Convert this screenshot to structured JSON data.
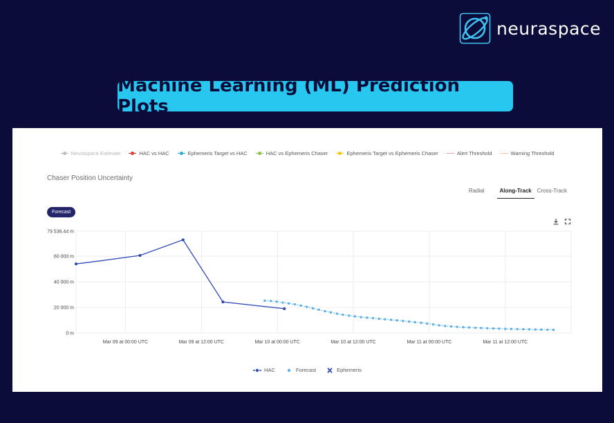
{
  "brand": {
    "name": "neuraspace",
    "logo_icon": "orbit-logo-icon"
  },
  "headline": "Machine Learning (ML) Prediction Plots",
  "top_legend": [
    {
      "label": "Neuraspace Estimate",
      "color": "#bdbdbd",
      "style": "dot-line",
      "muted": true
    },
    {
      "label": "HAC vs HAC",
      "color": "#e53935",
      "style": "dot-line"
    },
    {
      "label": "Ephemeris Target vs HAC",
      "color": "#29a8d8",
      "style": "dot-line"
    },
    {
      "label": "HAC vs Ephemeris Chaser",
      "color": "#8bc34a",
      "style": "dot-line"
    },
    {
      "label": "Ephemeris Target vs Ephemeris Chaser",
      "color": "#f5c518",
      "style": "dot-line"
    },
    {
      "label": "Alert Threshold",
      "color": "#ef8f8f",
      "style": "dashed"
    },
    {
      "label": "Warning Threshold",
      "color": "#f7b98c",
      "style": "dashed"
    }
  ],
  "panel": {
    "title": "Chaser Position Uncertainty",
    "tabs": [
      {
        "label": "Radial",
        "active": false
      },
      {
        "label": "Along-Track",
        "active": true
      },
      {
        "label": "Cross-Track",
        "active": false
      }
    ],
    "pill": "Forecast",
    "icons": {
      "download": "download-icon",
      "expand": "expand-icon"
    }
  },
  "bottom_legend": [
    {
      "label": "HAC",
      "color": "#2f49b5",
      "marker": "dot-line"
    },
    {
      "label": "Forecast",
      "color": "#5cb0ea",
      "marker": "dot"
    },
    {
      "label": "Ephemeris",
      "color": "#2f49b5",
      "marker": "x"
    }
  ],
  "chart_data": {
    "type": "line",
    "title": "Chaser Position Uncertainty",
    "xlabel": "",
    "ylabel": "",
    "x_ticks": [
      "Mar 09 at 00:00 UTC",
      "Mar 09 at 12:00 UTC",
      "Mar 10 at 00:00 UTC",
      "Mar 10 at 12:00 UTC",
      "Mar 11 at 00:00 UTC",
      "Mar 11 at 12:00 UTC"
    ],
    "x_tick_hours": [
      24,
      36,
      48,
      60,
      72,
      84
    ],
    "x_unit": "hours since Mar 08 at 00:00 UTC",
    "xlim": [
      16.2,
      94.4
    ],
    "y_ticks": [
      "0 m",
      "20 000 m",
      "40 000 m",
      "60 000 m",
      "79 536.44 m"
    ],
    "y_tick_values": [
      0,
      20000,
      40000,
      60000,
      79536.44
    ],
    "ylim": [
      0,
      79536.44
    ],
    "grid": true,
    "legend_position": "bottom-center",
    "series": [
      {
        "name": "HAC",
        "color": "#2f49b5",
        "markers_at_index": [
          0,
          2,
          3,
          4,
          5
        ],
        "points": [
          [
            16.2,
            54000
          ],
          [
            20.2,
            56500
          ],
          [
            26.3,
            60600
          ],
          [
            33.1,
            72800
          ],
          [
            39.4,
            24300
          ],
          [
            49.1,
            19000
          ]
        ]
      },
      {
        "name": "Forecast",
        "color": "#5cb0ea",
        "markers_at_index": "all",
        "x_start": 46.0,
        "x_step": 0.95,
        "values": [
          25300,
          25000,
          24500,
          23800,
          23100,
          22400,
          21500,
          20400,
          19300,
          18200,
          17100,
          16100,
          15100,
          14300,
          13600,
          13000,
          12400,
          12000,
          11600,
          11100,
          10700,
          10300,
          9900,
          9400,
          8900,
          8400,
          8000,
          7400,
          6700,
          6000,
          5500,
          5100,
          4800,
          4500,
          4300,
          4100,
          3900,
          3700,
          3550,
          3400,
          3250,
          3150,
          3050,
          2950,
          2850,
          2750,
          2650,
          2550,
          2450
        ]
      }
    ]
  }
}
